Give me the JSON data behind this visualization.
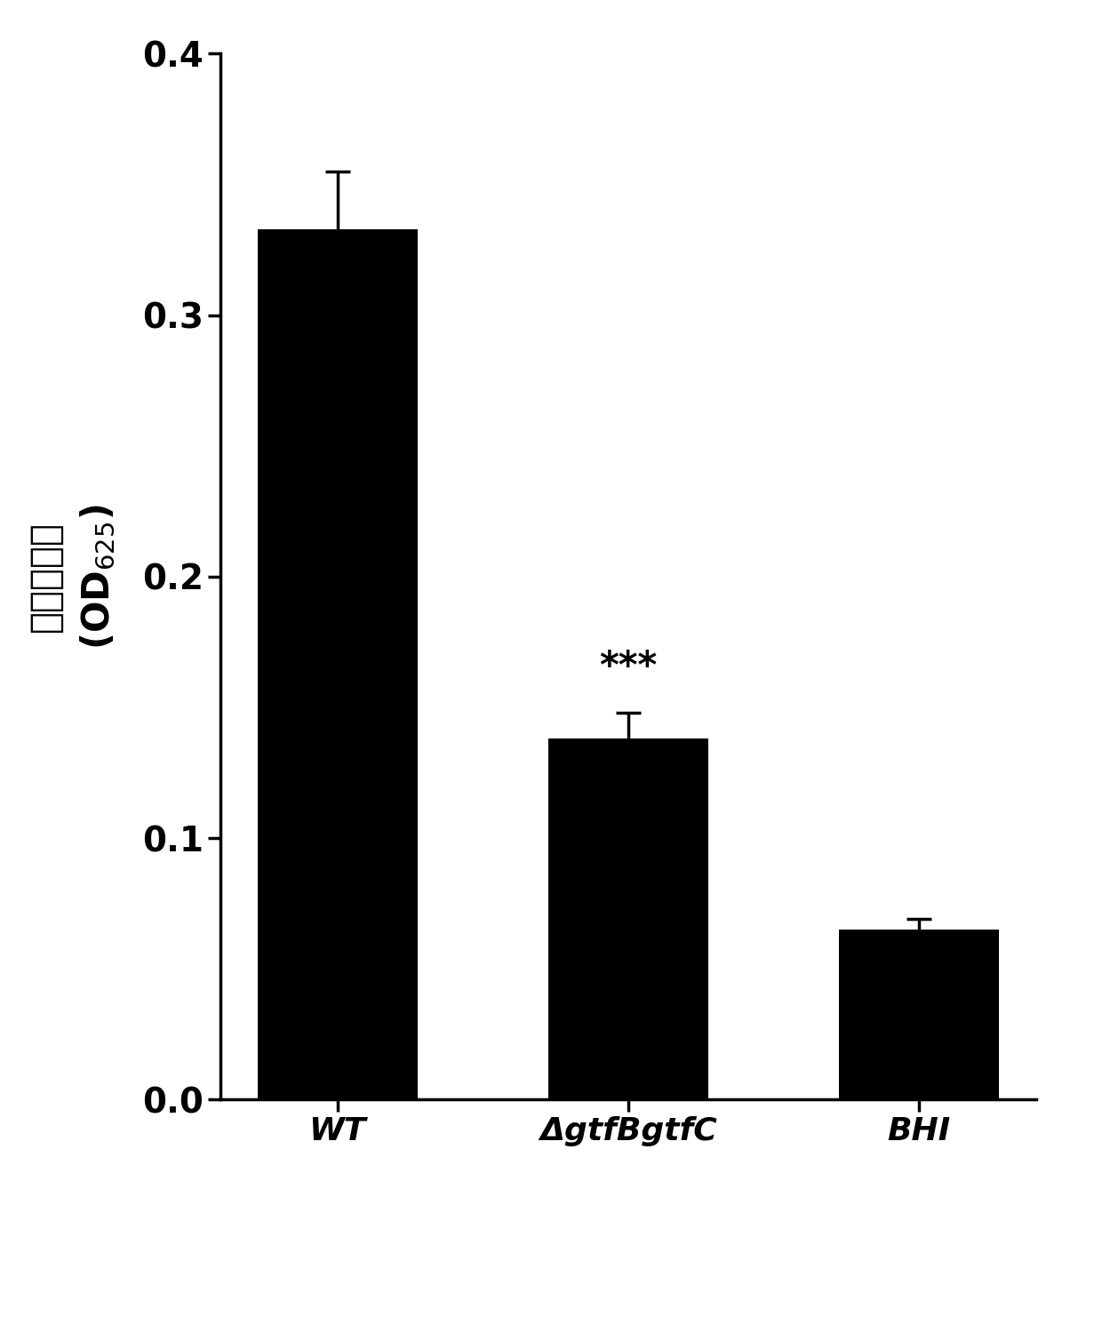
{
  "categories": [
    "WT",
    "ΔgtfBgtfC",
    "BHI"
  ],
  "values": [
    0.333,
    0.138,
    0.065
  ],
  "errors": [
    0.022,
    0.01,
    0.004
  ],
  "bar_color": "#000000",
  "bar_width": 0.55,
  "ylim": [
    0.0,
    0.4
  ],
  "yticks": [
    0.0,
    0.1,
    0.2,
    0.3,
    0.4
  ],
  "ylabel_chinese": "平均吸光度",
  "ylabel_od": "(OD",
  "ylabel_sub": "625",
  "ylabel_suffix": ")",
  "significance_label": "***",
  "significance_bar_index": 1,
  "tick_fontsize": 28,
  "ylabel_fontsize": 30,
  "xlabel_fontsize": 26,
  "sig_fontsize": 30,
  "figure_bg": "#ffffff",
  "axes_linewidth": 2.5,
  "tick_linewidth": 2.5,
  "capsize": 10,
  "error_linewidth": 2.5
}
